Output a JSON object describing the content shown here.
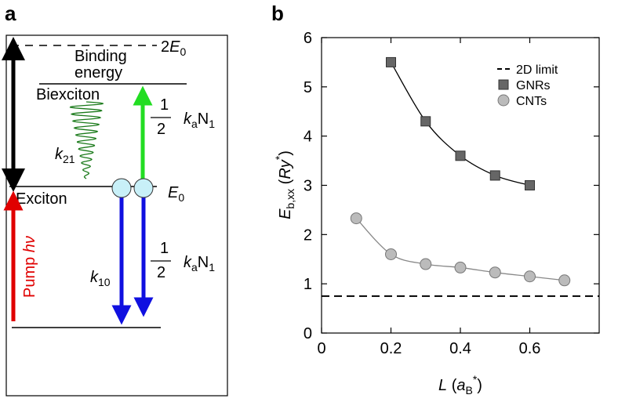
{
  "panel_labels": [
    "a",
    "b"
  ],
  "diagram": {
    "top_level": {
      "number": "2",
      "symbol": "E",
      "sub": "0"
    },
    "binding_energy": [
      "Binding",
      "energy"
    ],
    "biexciton": "Biexciton",
    "exciton": "Exciton",
    "exciton_level": {
      "symbol": "E",
      "sub": "0"
    },
    "k21": {
      "symbol": "k",
      "sub": "21"
    },
    "upper_rate": {
      "numerator": "1",
      "denominator": "2",
      "parts": [
        "k",
        "a",
        "N",
        "1"
      ]
    },
    "k10": {
      "symbol": "k",
      "sub": "10"
    },
    "lower_rate": {
      "numerator": "1",
      "denominator": "2",
      "parts": [
        "k",
        "a",
        "N",
        "1"
      ]
    },
    "pump": {
      "text": "Pump ",
      "symbol": "hν"
    }
  },
  "chart_data": {
    "type": "scatter",
    "x_label": {
      "symbol": "L",
      "open": " (",
      "a": "a",
      "sub": "B",
      "sup": "*",
      "close": ")"
    },
    "y_label": {
      "symbol": "E",
      "sub": "b,xx",
      "open": " (",
      "ry": "Ry",
      "sup": "*",
      "close": ")"
    },
    "xlim": [
      0,
      0.8
    ],
    "ylim": [
      0,
      6
    ],
    "xticks": [
      0,
      0.2,
      0.4,
      0.6
    ],
    "yticks": [
      0,
      1,
      2,
      3,
      4,
      5,
      6
    ],
    "legend": "upper right",
    "reference_lines": [
      {
        "name": "2D limit",
        "value": 0.75,
        "color": "#000",
        "style": "dashed"
      }
    ],
    "series": [
      {
        "name": "GNRs",
        "color": "#666666",
        "line_color": "#000000",
        "marker": "square",
        "x": [
          0.2,
          0.3,
          0.4,
          0.5,
          0.6
        ],
        "values": [
          5.5,
          4.3,
          3.6,
          3.2,
          3.0
        ]
      },
      {
        "name": "CNTs",
        "color": "#bbbbbb",
        "line_color": "#888888",
        "marker": "circle",
        "x": [
          0.1,
          0.2,
          0.3,
          0.4,
          0.5,
          0.6,
          0.7
        ],
        "values": [
          2.33,
          1.6,
          1.4,
          1.33,
          1.23,
          1.15,
          1.07
        ]
      }
    ]
  }
}
